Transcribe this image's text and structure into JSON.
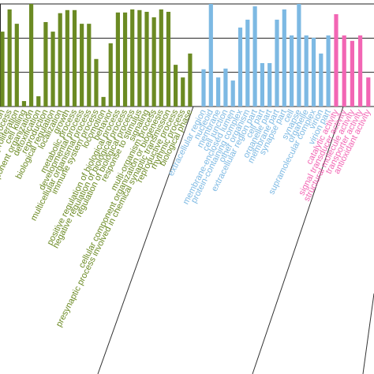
{
  "chart_data": {
    "type": "bar",
    "ylim": [
      0,
      3
    ],
    "yticks": [
      0,
      1,
      2,
      3
    ],
    "grid": true,
    "series": [
      {
        "color": "#6b8a23",
        "categories": [
          "biological adhesion",
          "cellular process",
          "cell population proliferation",
          "cell killing",
          "cellular component organization",
          "detoxification",
          "reproduction",
          "biological regulation",
          "localization",
          "growth",
          "metabolic process",
          "developmental process",
          "multicellular organismal process",
          "immune system process",
          "locomotion",
          "behavior",
          "positive regulation of biological process",
          "negative regulation of biological process",
          "regulation of biological process",
          "response to stimulus",
          "signaling",
          "multi-organism process",
          "cellular component organization or biogenesis",
          "presynaptic process involved in chemical synaptic transmission",
          "reproductive process",
          "rhythmic process",
          "biological phase"
        ],
        "values": [
          2.19,
          2.84,
          2.42,
          0.16,
          3.0,
          0.3,
          2.47,
          2.19,
          2.73,
          2.82,
          2.82,
          2.42,
          2.42,
          1.39,
          0.28,
          1.85,
          2.75,
          2.75,
          2.84,
          2.82,
          2.77,
          2.61,
          2.84,
          2.77,
          1.22,
          0.85,
          1.55
        ]
      },
      {
        "color": "#7db9e3",
        "categories": [
          "extracellular region",
          "nucleoid",
          "membrane",
          "cell junction",
          "membrane-enclosed lumen",
          "protein-containing complex",
          "other organism",
          "extracellular region part",
          "cell part",
          "organelle part",
          "membrane part",
          "synapse part",
          "cell",
          "synapse",
          "organelle",
          "supramolecular complex",
          "virion",
          "virion part"
        ],
        "values": [
          1.09,
          3.0,
          0.85,
          1.11,
          0.76,
          2.31,
          2.54,
          2.93,
          1.27,
          1.27,
          2.54,
          2.84,
          2.08,
          3.0,
          2.08,
          2.01,
          1.55,
          2.08
        ]
      },
      {
        "color": "#f266b4",
        "categories": [
          "catalytic activity",
          "signal transducer activity",
          "structural molecule activity",
          "transporter activity",
          "antioxidant activity"
        ],
        "values": [
          2.7,
          2.08,
          1.92,
          2.08,
          0.85
        ]
      }
    ]
  }
}
